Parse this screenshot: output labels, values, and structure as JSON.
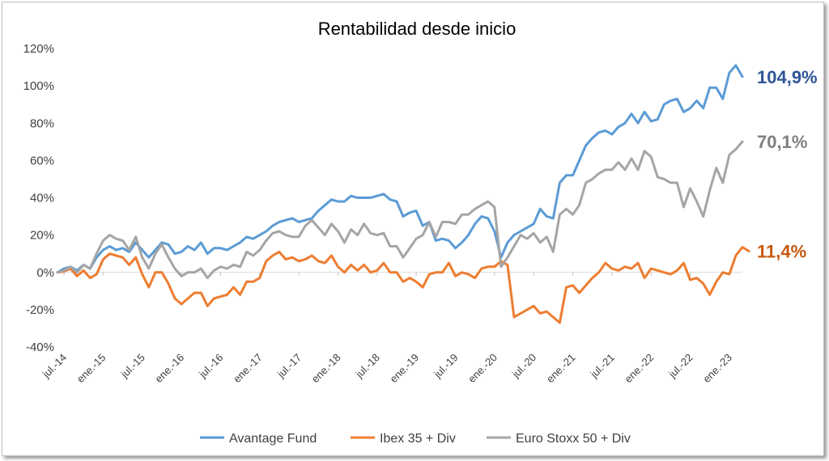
{
  "chart_data": {
    "type": "line",
    "title": "Rentabilidad desde inicio",
    "xlabel": "",
    "ylabel": "",
    "ylim": [
      -40,
      120
    ],
    "y_ticks": [
      "-40%",
      "-20%",
      "0%",
      "20%",
      "40%",
      "60%",
      "80%",
      "100%",
      "120%"
    ],
    "x_ticks": [
      "jul.-14",
      "ene.-15",
      "jul.-15",
      "ene.-16",
      "jul.-16",
      "ene.-17",
      "jul.-17",
      "ene.-18",
      "jul.-18",
      "ene.-19",
      "jul.-19",
      "ene.-20",
      "jul.-20",
      "ene.-21",
      "jul.-21",
      "ene.-22",
      "jul.-22",
      "ene.-23"
    ],
    "x_start": "jun.-14",
    "x_end": "may.-23",
    "grid": false,
    "legend_position": "bottom",
    "series": [
      {
        "name": "Avantage Fund",
        "color": "#5b9bd5",
        "end_label": "104,9%",
        "end_label_color": "#2f5597",
        "values": [
          0,
          2,
          3,
          1,
          4,
          2,
          8,
          12,
          14,
          12,
          13,
          11,
          16,
          12,
          8,
          12,
          16,
          15,
          10,
          11,
          14,
          12,
          16,
          10,
          13,
          13,
          12,
          14,
          16,
          19,
          18,
          20,
          22,
          25,
          27,
          28,
          29,
          27,
          28,
          29,
          33,
          36,
          39,
          38,
          38,
          41,
          40,
          40,
          40,
          41,
          42,
          39,
          38,
          30,
          32,
          33,
          25,
          27,
          17,
          18,
          17,
          13,
          16,
          20,
          26,
          30,
          29,
          22,
          8,
          16,
          20,
          22,
          24,
          26,
          34,
          30,
          29,
          48,
          52,
          52,
          60,
          68,
          72,
          75,
          76,
          74,
          78,
          80,
          85,
          80,
          86,
          81,
          82,
          90,
          92,
          93,
          86,
          88,
          92,
          88,
          99,
          99,
          93,
          107,
          111,
          104.9
        ]
      },
      {
        "name": "Ibex 35 + Div",
        "color": "#ed7d31",
        "end_label": "11,4%",
        "end_label_color": "#c55a11",
        "values": [
          0,
          0.5,
          2,
          -2,
          1,
          -3,
          -1,
          7,
          10,
          9,
          8,
          4,
          8,
          -1,
          -8,
          0,
          0,
          -6,
          -14,
          -17,
          -14,
          -11,
          -11,
          -18,
          -14,
          -13,
          -12,
          -8,
          -12,
          -5,
          -5,
          -3,
          6,
          9,
          11,
          7,
          8,
          6,
          7,
          9,
          6,
          5,
          9,
          3,
          0,
          4,
          1,
          4,
          0,
          1,
          5,
          0,
          0,
          -5,
          -3,
          -5,
          -8,
          -1,
          0,
          0,
          5,
          -2,
          0,
          -1,
          -3,
          2,
          3,
          3,
          6,
          4,
          -24,
          -22,
          -20,
          -18,
          -22,
          -21,
          -24,
          -27,
          -8,
          -7,
          -11,
          -7,
          -3,
          0,
          5,
          2,
          1,
          3,
          2,
          5,
          -3,
          2,
          1,
          0,
          -1,
          1,
          5,
          -4,
          -3,
          -6,
          -12,
          -5,
          0,
          -1,
          9,
          13.5,
          11.4
        ]
      },
      {
        "name": "Euro Stoxx 50 + Div",
        "color": "#a5a5a5",
        "end_label": "70,1%",
        "end_label_color": "#7f7f7f",
        "values": [
          0,
          1,
          3,
          0,
          4,
          2,
          10,
          17,
          20,
          18,
          17,
          12,
          19,
          8,
          2,
          10,
          15,
          8,
          2,
          -2,
          0,
          0,
          2,
          -3,
          1,
          3,
          2,
          4,
          3,
          11,
          9,
          12,
          17,
          21,
          22,
          20,
          19,
          19,
          25,
          28,
          24,
          20,
          26,
          22,
          16,
          23,
          20,
          26,
          21,
          20,
          21,
          14,
          14,
          8,
          13,
          18,
          20,
          27,
          19,
          27,
          27,
          26,
          31,
          31,
          34,
          36,
          38,
          35,
          3,
          8,
          14,
          20,
          18,
          21,
          16,
          19,
          11,
          31,
          34,
          31,
          36,
          48,
          50,
          53,
          55,
          55,
          59,
          55,
          61,
          55,
          65,
          62,
          51,
          50,
          48,
          48,
          35,
          45,
          38,
          30,
          44,
          56,
          48,
          63,
          66,
          70.1
        ]
      }
    ]
  }
}
